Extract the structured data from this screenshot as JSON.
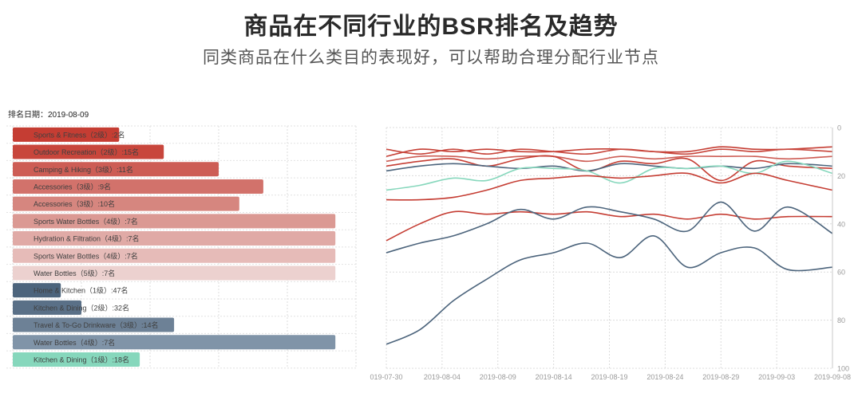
{
  "header": {
    "title": "商品在不同行业的BSR排名及趋势",
    "subtitle": "同类商品在什么类目的表现好，可以帮助合理分配行业节点"
  },
  "rank_date_label": "排名日期：2019-08-09",
  "chart_data": [
    {
      "type": "bar",
      "orientation": "horizontal",
      "title": "",
      "grid": true,
      "bars": [
        {
          "label": "Sports & Fitness（2级）:2名",
          "value": 31,
          "color": "#c53d33"
        },
        {
          "label": "Outdoor Recreation（2级）:15名",
          "value": 44,
          "color": "#c8463c"
        },
        {
          "label": "Camping & Hiking（3级）:11名",
          "value": 60,
          "color": "#cd5d55"
        },
        {
          "label": "Accessories（3级）:9名",
          "value": 73,
          "color": "#d2726b"
        },
        {
          "label": "Accessories（3级）:10名",
          "value": 66,
          "color": "#d6867f"
        },
        {
          "label": "Sports Water Bottles（4级）:7名",
          "value": 94,
          "color": "#db9993"
        },
        {
          "label": "Hydration & Filtration（4级）:7名",
          "value": 94,
          "color": "#e0aaa6"
        },
        {
          "label": "Sports Water Bottles（4级）:7名",
          "value": 94,
          "color": "#e6bbb8"
        },
        {
          "label": "Water Bottles（5级）:7名",
          "value": 94,
          "color": "#ecd1cf"
        },
        {
          "label": "Home & Kitchen（1级）:47名",
          "value": 14,
          "color": "#4c647c"
        },
        {
          "label": "Kitchen & Dining（2级）:32名",
          "value": 20,
          "color": "#5a7087"
        },
        {
          "label": "Travel & To-Go Drinkware（3级）:14名",
          "value": 47,
          "color": "#6d8196"
        },
        {
          "label": "Water Bottles（4级）:7名",
          "value": 94,
          "color": "#8094a8"
        },
        {
          "label": "Kitchen & Dining（1级）:18名",
          "value": 37,
          "color": "#86d7bc"
        }
      ]
    },
    {
      "type": "line",
      "title": "",
      "x_dates": [
        "2019-07-30",
        "2019-08-02",
        "2019-08-05",
        "2019-08-08",
        "2019-08-11",
        "2019-08-14",
        "2019-08-17",
        "2019-08-20",
        "2019-08-23",
        "2019-08-26",
        "2019-08-29",
        "2019-09-01",
        "2019-09-04",
        "2019-09-08"
      ],
      "x_ticks": [
        "019-07-30",
        "2019-08-04",
        "2019-08-09",
        "2019-08-14",
        "2019-08-19",
        "2019-08-24",
        "2019-08-29",
        "2019-09-03",
        "2019-09-08"
      ],
      "y_ticks": [
        "0",
        "20",
        "40",
        "60",
        "80",
        "100"
      ],
      "ylim": [
        0,
        100
      ],
      "y_inverted": true,
      "axis_position": "right",
      "series": [
        {
          "color": "#c53d33",
          "values": [
            12,
            9,
            10,
            9,
            10,
            10,
            9,
            9,
            10,
            10,
            8,
            9,
            9,
            8
          ]
        },
        {
          "color": "#c8463c",
          "values": [
            9,
            11,
            9,
            11,
            9,
            10,
            11,
            9,
            10,
            11,
            9,
            10,
            9,
            10
          ]
        },
        {
          "color": "#cd5d55",
          "values": [
            14,
            12,
            12,
            13,
            12,
            12,
            14,
            12,
            13,
            12,
            12,
            12,
            13,
            12
          ]
        },
        {
          "color": "#c53d33",
          "values": [
            16,
            14,
            13,
            16,
            13,
            12,
            18,
            14,
            15,
            13,
            22,
            14,
            16,
            17
          ]
        },
        {
          "color": "#4c647c",
          "values": [
            18,
            16,
            15,
            16,
            17,
            16,
            18,
            15,
            16,
            17,
            16,
            17,
            15,
            16
          ]
        },
        {
          "color": "#86d7bc",
          "values": [
            26,
            24,
            21,
            22,
            17,
            17,
            18,
            23,
            17,
            17,
            16,
            19,
            14,
            19
          ]
        },
        {
          "color": "#c53d33",
          "values": [
            30,
            30,
            29,
            26,
            22,
            21,
            20,
            21,
            20,
            19,
            23,
            19,
            22,
            26
          ]
        },
        {
          "color": "#c53d33",
          "values": [
            47,
            40,
            35,
            36,
            35,
            36,
            35,
            37,
            36,
            38,
            36,
            38,
            37,
            37
          ]
        },
        {
          "color": "#4c647c",
          "values": [
            52,
            48,
            45,
            40,
            34,
            38,
            33,
            35,
            38,
            43,
            31,
            43,
            33,
            44
          ]
        },
        {
          "color": "#4c647c",
          "values": [
            90,
            84,
            72,
            63,
            55,
            52,
            48,
            54,
            45,
            58,
            52,
            50,
            59,
            58
          ]
        }
      ]
    }
  ]
}
